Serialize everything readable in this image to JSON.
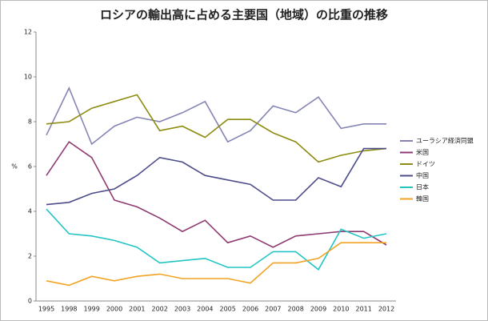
{
  "chart_data": {
    "type": "line",
    "title": "ロシアの輸出高に占める主要国（地域）の比重の推移",
    "y_label": "%",
    "categories": [
      "1995",
      "1998",
      "1999",
      "2000",
      "2001",
      "2002",
      "2003",
      "2004",
      "2005",
      "2006",
      "2007",
      "2008",
      "2009",
      "2010",
      "2011",
      "2012"
    ],
    "series": [
      {
        "name": "ユーラシア経済同盟",
        "color": "#8585b5",
        "values": [
          7.4,
          9.5,
          7.0,
          7.8,
          8.2,
          8.0,
          8.4,
          8.9,
          7.1,
          7.6,
          8.7,
          8.4,
          9.1,
          7.7,
          7.9,
          7.9
        ]
      },
      {
        "name": "米国",
        "color": "#8e3a70",
        "values": [
          5.6,
          7.1,
          6.4,
          4.5,
          4.2,
          3.7,
          3.1,
          3.6,
          2.6,
          2.9,
          2.4,
          2.9,
          3.0,
          3.1,
          3.1,
          2.5
        ]
      },
      {
        "name": "ドイツ",
        "color": "#8c8c10",
        "values": [
          7.9,
          8.0,
          8.6,
          8.9,
          9.2,
          7.6,
          7.8,
          7.3,
          8.1,
          8.1,
          7.5,
          7.1,
          6.2,
          6.5,
          6.7,
          6.8
        ]
      },
      {
        "name": "中国",
        "color": "#4d4d8c",
        "values": [
          4.3,
          4.4,
          4.8,
          5.0,
          5.6,
          6.4,
          6.2,
          5.6,
          5.4,
          5.2,
          4.5,
          4.5,
          5.5,
          5.1,
          6.8,
          6.8
        ]
      },
      {
        "name": "日本",
        "color": "#22c4c4",
        "values": [
          4.1,
          3.0,
          2.9,
          2.7,
          2.4,
          1.7,
          1.8,
          1.9,
          1.5,
          1.5,
          2.2,
          2.2,
          1.4,
          3.2,
          2.8,
          3.0
        ]
      },
      {
        "name": "韓国",
        "color": "#f2a324",
        "values": [
          0.9,
          0.7,
          1.1,
          0.9,
          1.1,
          1.2,
          1.0,
          1.0,
          1.0,
          0.8,
          1.7,
          1.7,
          1.9,
          2.6,
          2.6,
          2.6
        ]
      }
    ],
    "ylim": [
      0,
      12
    ],
    "yticks": [
      0,
      2,
      4,
      6,
      8,
      10,
      12
    ],
    "grid": false,
    "legend": "right"
  }
}
